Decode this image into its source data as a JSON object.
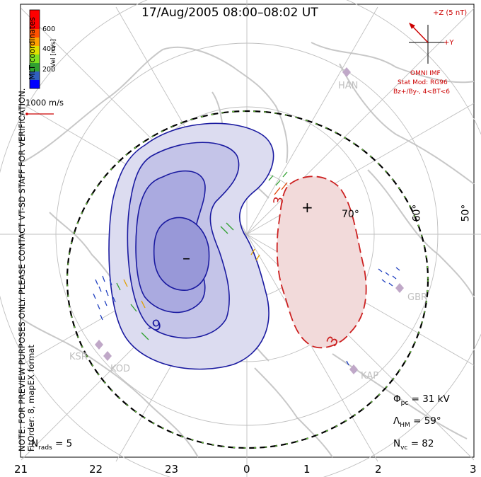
{
  "header": {
    "title": "17/Aug/2005 08:00–08:02 UT"
  },
  "note": {
    "line1": "NOTE: FOR PREVIEW PURPOSES ONLY. PLEASE CONTACT VT-SD STAFF FOR VERIFICATION.",
    "line2": "FitOrder: 8, mapEX format"
  },
  "colorbar": {
    "title": "MLT coordinates",
    "unit": "Vel [m/s]",
    "ticks": [
      "600",
      "400",
      "200"
    ],
    "colors": [
      "#0000ff",
      "#3060c0",
      "#30a030",
      "#80e020",
      "#e0e000",
      "#ffa000",
      "#ff5000",
      "#ff0000"
    ]
  },
  "reference_vector": {
    "label": "1000 m/s"
  },
  "imf": {
    "axis_z": "+Z (5 nT)",
    "axis_y": "+Y",
    "source": "OMNI IMF",
    "model": "Stat Mod: RG96",
    "condition": "Bz+/By-, 4<BT<6"
  },
  "stats": {
    "phi_symbol": "Φ",
    "phi_sub": "pc",
    "phi_value": "= 31 kV",
    "lambda_symbol": "Λ",
    "lambda_sub": "HM",
    "lambda_value": "= 59°",
    "n_symbol": "N",
    "n_sub": "vc",
    "n_value": "= 82",
    "nrads_symbol": "N",
    "nrads_sub": "rads",
    "nrads_value": "= 5"
  },
  "mlt_axis": [
    "21",
    "22",
    "23",
    "0",
    "1",
    "2",
    "3"
  ],
  "latitude_labels": [
    "70°",
    "60°",
    "50°"
  ],
  "stations": [
    "HAN",
    "KSR",
    "KOD",
    "GBR",
    "KAP"
  ],
  "contours": {
    "negative_label": "-9",
    "positive_label": "3",
    "negative_marker": "–",
    "positive_marker": "+",
    "negative_color": "#1a1aa0",
    "positive_color": "#cc2020"
  }
}
